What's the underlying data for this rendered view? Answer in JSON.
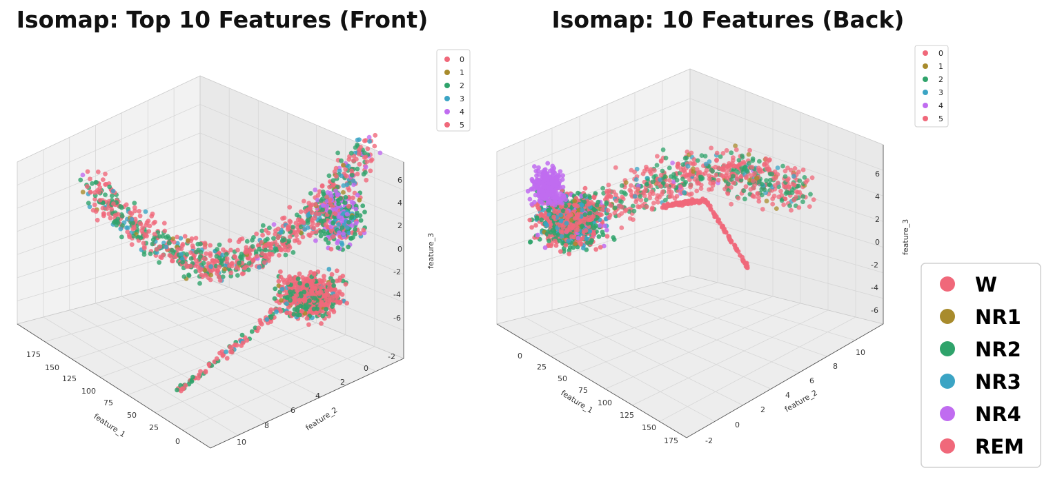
{
  "colors": {
    "class_0": "#f0687a",
    "class_1": "#a88b2c",
    "class_2": "#2fa36b",
    "class_3": "#3ba4c4",
    "class_4": "#c06cf0",
    "class_5": "#f0687a"
  },
  "chart_data": [
    {
      "type": "scatter",
      "title": "Isomap: Top 10 Features (Front)",
      "xlabel": "feature_1",
      "ylabel": "feature_2",
      "zlabel": "feature_3",
      "xticks": [
        "175",
        "150",
        "125",
        "100",
        "75",
        "50",
        "25",
        "0"
      ],
      "yticks": [
        "-2",
        "0",
        "2",
        "4",
        "6",
        "8",
        "10"
      ],
      "zticks": [
        "6",
        "4",
        "2",
        "0",
        "-2",
        "-4",
        "-6"
      ],
      "xlim": [
        0,
        180
      ],
      "ylim": [
        -3,
        11
      ],
      "zlim": [
        -7,
        7
      ],
      "projection": "3d",
      "legend": {
        "placement": "top-right",
        "entries": [
          "0",
          "1",
          "2",
          "3",
          "4",
          "5"
        ]
      }
    },
    {
      "type": "scatter",
      "title": "Isomap: 10 Features (Back)",
      "xlabel": "feature_1",
      "ylabel": "feature_2",
      "zlabel": "feature_3",
      "xticks": [
        "0",
        "25",
        "50",
        "75",
        "100",
        "125",
        "150",
        "175"
      ],
      "yticks": [
        "-2",
        "0",
        "2",
        "4",
        "6",
        "8",
        "10"
      ],
      "zticks": [
        "6",
        "4",
        "2",
        "0",
        "-2",
        "-4",
        "-6"
      ],
      "xlim": [
        0,
        180
      ],
      "ylim": [
        -3,
        11
      ],
      "zlim": [
        -7,
        7
      ],
      "projection": "3d",
      "legend": {
        "placement": "top-right",
        "entries": [
          "0",
          "1",
          "2",
          "3",
          "4",
          "5"
        ]
      }
    }
  ],
  "stage_legend": {
    "entries": [
      {
        "label": "W",
        "color": "#f0687a"
      },
      {
        "label": "NR1",
        "color": "#a88b2c"
      },
      {
        "label": "NR2",
        "color": "#2fa36b"
      },
      {
        "label": "NR3",
        "color": "#3ba4c4"
      },
      {
        "label": "NR4",
        "color": "#c06cf0"
      },
      {
        "label": "REM",
        "color": "#f0687a"
      }
    ]
  }
}
